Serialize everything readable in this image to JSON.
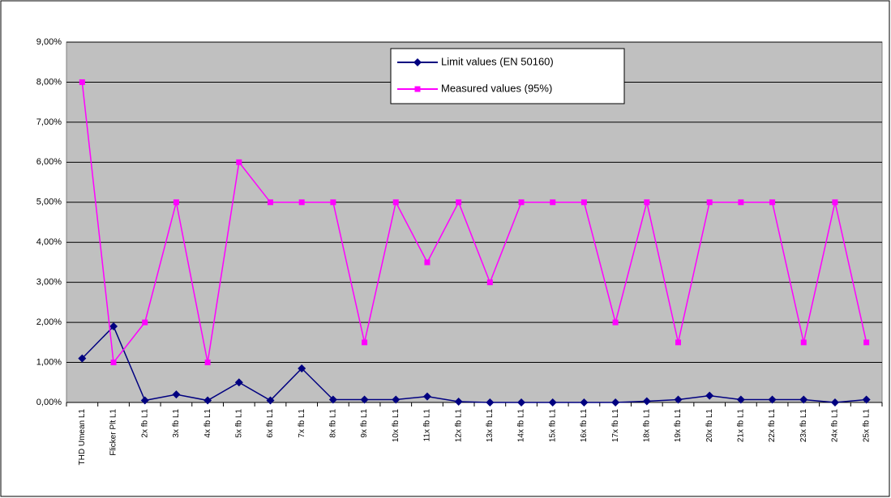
{
  "chart_data": {
    "type": "line",
    "categories": [
      "THD Umean L1",
      "Flicker Plt L1",
      "2x fb L1",
      "3x fb L1",
      "4x fb L1",
      "5x fb L1",
      "6x fb L1",
      "7x fb L1",
      "8x fb L1",
      "9x fb L1",
      "10x fb L1",
      "11x fb L1",
      "12x fb L1",
      "13x fb L1",
      "14x fb L1",
      "15x fb L1",
      "16x fb L1",
      "17x fb L1",
      "18x fb L1",
      "19x fb L1",
      "20x fb L1",
      "21x fb L1",
      "22x fb L1",
      "23x fb L1",
      "24x fb L1",
      "25x fb L1"
    ],
    "series": [
      {
        "name": "Limit values (EN 50160)",
        "color": "#000080",
        "marker": "diamond",
        "values": [
          1.1,
          1.9,
          0.05,
          0.2,
          0.05,
          0.5,
          0.05,
          0.85,
          0.07,
          0.07,
          0.07,
          0.15,
          0.02,
          0,
          0,
          0,
          0,
          0,
          0.03,
          0.07,
          0.17,
          0.07,
          0.07,
          0.07,
          0,
          0.07
        ]
      },
      {
        "name": "Measured values (95%)",
        "color": "#ff00ff",
        "marker": "square",
        "values": [
          8,
          1,
          2,
          5,
          1,
          6,
          5,
          5,
          5,
          1.5,
          5,
          3.5,
          5,
          3,
          5,
          5,
          5,
          2,
          5,
          1.5,
          5,
          5,
          5,
          1.5,
          5,
          1.5
        ]
      }
    ],
    "ylim": [
      0,
      9
    ],
    "yticks": [
      {
        "value": 0,
        "label": "0,00%"
      },
      {
        "value": 1,
        "label": "1,00%"
      },
      {
        "value": 2,
        "label": "2,00%"
      },
      {
        "value": 3,
        "label": "3,00%"
      },
      {
        "value": 4,
        "label": "4,00%"
      },
      {
        "value": 5,
        "label": "5,00%"
      },
      {
        "value": 6,
        "label": "6,00%"
      },
      {
        "value": 7,
        "label": "7,00%"
      },
      {
        "value": 8,
        "label": "8,00%"
      },
      {
        "value": 9,
        "label": "9,00%"
      }
    ],
    "grid": true,
    "legend": "top"
  }
}
